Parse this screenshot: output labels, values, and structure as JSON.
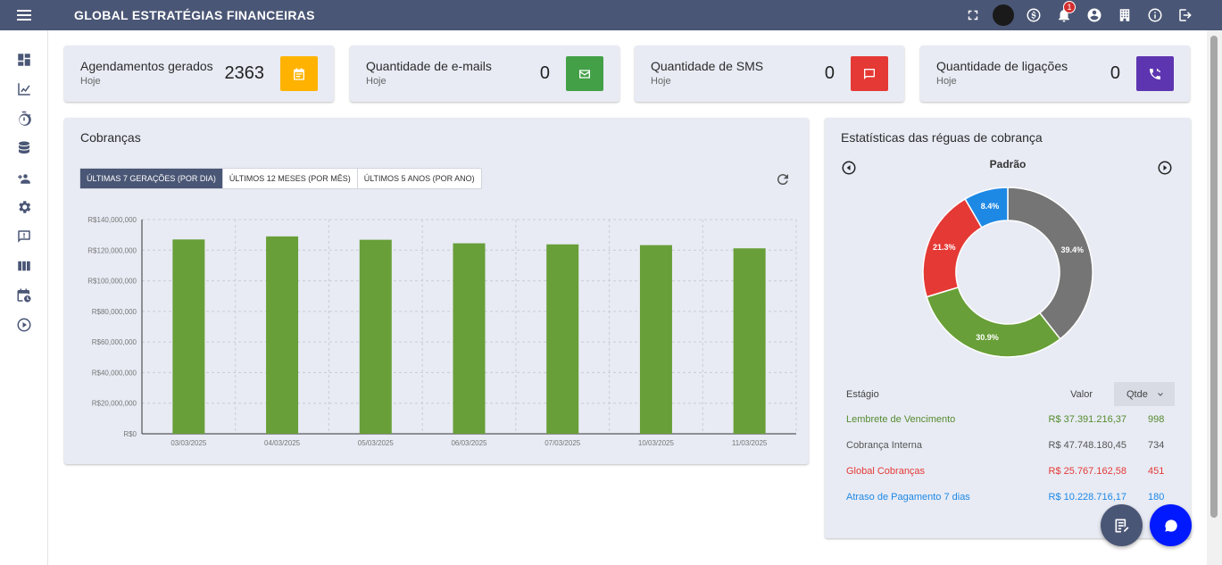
{
  "app": {
    "title": "GLOBAL ESTRATÉGIAS FINANCEIRAS"
  },
  "header": {
    "icons": [
      "fullscreen-icon",
      "avatar",
      "dollar-circle-icon",
      "bell-icon",
      "user-circle-icon",
      "building-icon",
      "info-icon",
      "logout-icon"
    ],
    "notification_count": "1"
  },
  "sidebar": {
    "items": [
      "dashboard-icon",
      "chart-line-icon",
      "timer-icon",
      "database-icon",
      "users-add-icon",
      "gear-icon",
      "feedback-icon",
      "columns-icon",
      "calendar-clock-icon",
      "play-circle-icon"
    ]
  },
  "stats": [
    {
      "title": "Agendamentos gerados",
      "sub": "Hoje",
      "value": "2363",
      "color": "#ffb300",
      "icon": "calendar-icon"
    },
    {
      "title": "Quantidade de e-mails",
      "sub": "Hoje",
      "value": "0",
      "color": "#43a047",
      "icon": "email-icon"
    },
    {
      "title": "Quantidade de SMS",
      "sub": "Hoje",
      "value": "0",
      "color": "#e53935",
      "icon": "sms-icon"
    },
    {
      "title": "Quantidade de ligações",
      "sub": "Hoje",
      "value": "0",
      "color": "#5e35b1",
      "icon": "phone-icon"
    }
  ],
  "cobrancas": {
    "title": "Cobranças",
    "tabs": [
      "ÚLTIMAS 7 GERAÇÕES (POR DIA)",
      "ÚLTIMOS 12 MESES (POR MÊS)",
      "ÚLTIMOS 5 ANOS (POR ANO)"
    ],
    "active_tab": 0
  },
  "chart_data": {
    "type": "bar",
    "categories": [
      "03/03/2025",
      "04/03/2025",
      "05/03/2025",
      "06/03/2025",
      "07/03/2025",
      "10/03/2025",
      "11/03/2025"
    ],
    "values": [
      127000000,
      129000000,
      126800000,
      124500000,
      123800000,
      123300000,
      121200000
    ],
    "ylim": [
      0,
      140000000
    ],
    "yticks": [
      "R$0",
      "R$20,000,000",
      "R$40,000,000",
      "R$60,000,000",
      "R$80,000,000",
      "R$100,000,000",
      "R$120,000,000",
      "R$140,000,000"
    ],
    "color": "#689f38",
    "grid": true
  },
  "estatisticas": {
    "title": "Estatísticas das réguas de cobrança",
    "ruler_name": "Padrão",
    "donut": [
      {
        "label": "39.4%",
        "value": 39.4,
        "color": "#757575"
      },
      {
        "label": "30.9%",
        "value": 30.9,
        "color": "#689f38"
      },
      {
        "label": "21.3%",
        "value": 21.3,
        "color": "#e53935"
      },
      {
        "label": "8.4%",
        "value": 8.4,
        "color": "#1e88e5"
      }
    ],
    "headers": {
      "stage": "Estágio",
      "value": "Valor",
      "qty": "Qtde"
    },
    "rows": [
      {
        "stage": "Lembrete de Vencimento",
        "value": "R$ 37.391.216,37",
        "qty": "998",
        "color": "#558b2f"
      },
      {
        "stage": "Cobrança Interna",
        "value": "R$ 47.748.180,45",
        "qty": "734",
        "color": "#555555"
      },
      {
        "stage": "Global Cobranças",
        "value": "R$ 25.767.162,58",
        "qty": "451",
        "color": "#e53935"
      },
      {
        "stage": "Atraso de Pagamento 7 dias",
        "value": "R$ 10.228.716,17",
        "qty": "180",
        "color": "#1e88e5"
      }
    ]
  }
}
